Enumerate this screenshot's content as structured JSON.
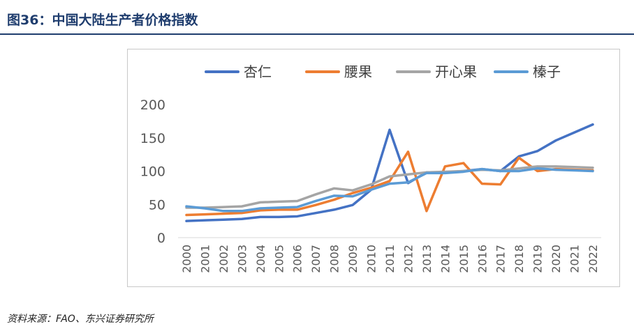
{
  "figure": {
    "title": "图36：中国大陆生产者价格指数",
    "source": "资料来源：FAO、东兴证券研究所"
  },
  "chart_data": {
    "type": "line",
    "title": "",
    "xlabel": "",
    "ylabel": "",
    "x": [
      "2000",
      "2001",
      "2002",
      "2003",
      "2004",
      "2005",
      "2006",
      "2007",
      "2008",
      "2009",
      "2010",
      "2011",
      "2012",
      "2013",
      "2014",
      "2015",
      "2016",
      "2017",
      "2018",
      "2019",
      "2020",
      "2021",
      "2022"
    ],
    "ylim": [
      0,
      200
    ],
    "yticks": [
      0,
      50,
      100,
      150,
      200
    ],
    "grid": false,
    "legend": "top",
    "series": [
      {
        "name": "杏仁",
        "color": "#4472c4",
        "values": [
          25,
          26,
          27,
          28,
          31,
          31,
          32,
          37,
          42,
          49,
          72,
          162,
          82,
          98,
          98,
          100,
          103,
          100,
          122,
          130,
          146,
          158,
          170
        ]
      },
      {
        "name": "腰果",
        "color": "#ed7d31",
        "values": [
          34,
          35,
          36,
          37,
          41,
          42,
          42,
          49,
          57,
          67,
          75,
          85,
          129,
          40,
          107,
          112,
          81,
          80,
          120,
          100,
          103,
          102,
          101
        ]
      },
      {
        "name": "开心果",
        "color": "#a5a5a5",
        "values": [
          45,
          45,
          46,
          47,
          53,
          54,
          55,
          65,
          74,
          71,
          80,
          92,
          95,
          98,
          99,
          100,
          102,
          101,
          104,
          107,
          107,
          106,
          105
        ]
      },
      {
        "name": "榛子",
        "color": "#5b9bd5",
        "values": [
          47,
          44,
          40,
          40,
          44,
          45,
          46,
          55,
          63,
          62,
          72,
          81,
          83,
          97,
          97,
          99,
          103,
          100,
          100,
          104,
          102,
          101,
          100
        ]
      }
    ]
  }
}
